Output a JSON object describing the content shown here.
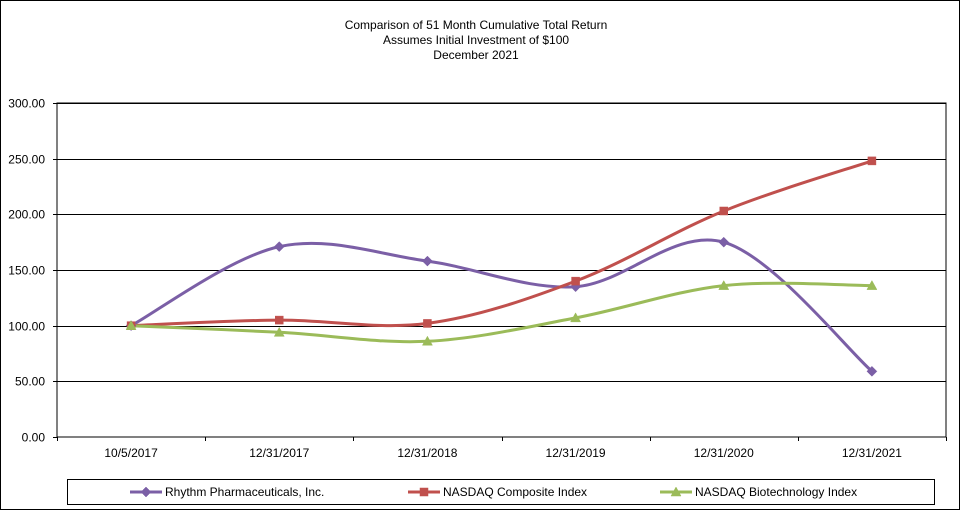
{
  "chart_data": {
    "type": "line",
    "title": [
      "Comparison  of 51 Month Cumulative Total Return",
      "Assumes Initial Investment  of $100",
      "December  2021"
    ],
    "xlabel": "",
    "ylabel": "",
    "categories": [
      "10/5/2017",
      "12/31/2017",
      "12/31/2018",
      "12/31/2019",
      "12/31/2020",
      "12/31/2021"
    ],
    "ylim": [
      0,
      300
    ],
    "yticks": [
      "0.00",
      "50.00",
      "100.00",
      "150.00",
      "200.00",
      "250.00",
      "300.00"
    ],
    "grid": true,
    "legend_position": "bottom",
    "series": [
      {
        "name": "Rhythm Pharmaceuticals, Inc.",
        "color": "#7b5fa6",
        "marker": "diamond",
        "values": [
          100,
          171,
          158,
          135,
          175,
          59
        ]
      },
      {
        "name": "NASDAQ Composite Index",
        "color": "#c0504d",
        "marker": "square",
        "values": [
          100,
          105,
          102,
          140,
          203,
          248
        ]
      },
      {
        "name": "NASDAQ Biotechnology Index",
        "color": "#9bbb59",
        "marker": "triangle",
        "values": [
          100,
          94,
          86,
          107,
          136,
          136
        ]
      }
    ]
  }
}
